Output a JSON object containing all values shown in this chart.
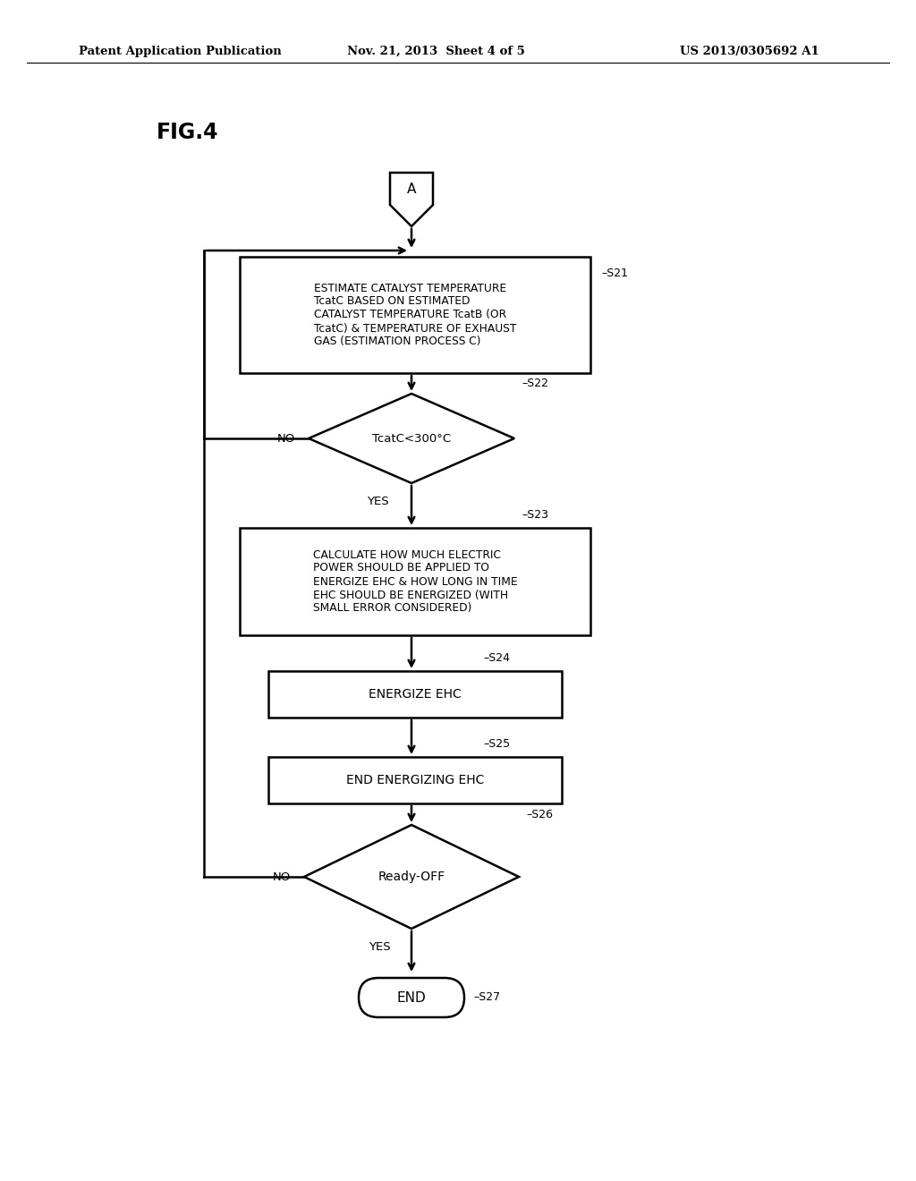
{
  "title_left": "Patent Application Publication",
  "title_mid": "Nov. 21, 2013  Sheet 4 of 5",
  "title_right": "US 2013/0305692 A1",
  "fig_label": "FIG.4",
  "bg_color": "#ffffff",
  "text_color": "#000000",
  "connector_label": "A",
  "s21_label": "ESTIMATE CATALYST TEMPERATURE\nTcatC BASED ON ESTIMATED\nCATALYST TEMPERATURE TcatB (OR\nTcatC) & TEMPERATURE OF EXHAUST\nGAS (ESTIMATION PROCESS C)",
  "s22_label": "TcatC<300°C",
  "s23_label": "CALCULATE HOW MUCH ELECTRIC\nPOWER SHOULD BE APPLIED TO\nENERGIZE EHC & HOW LONG IN TIME\nEHC SHOULD BE ENERGIZED (WITH\nSMALL ERROR CONSIDERED)",
  "s24_label": "ENERGIZE EHC",
  "s25_label": "END ENERGIZING EHC",
  "s26_label": "Ready-OFF",
  "s27_label": "END",
  "step_ids": [
    "S21",
    "S22",
    "S23",
    "S24",
    "S25",
    "S26",
    "S27"
  ],
  "lw": 1.8
}
